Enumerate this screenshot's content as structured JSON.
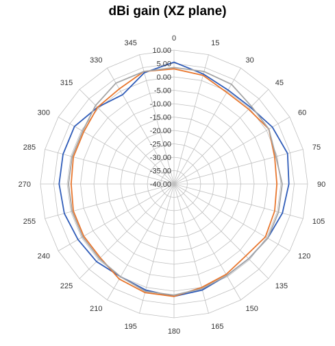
{
  "chart_data": {
    "type": "radar",
    "title": "dBi gain (XZ plane)",
    "angles": [
      "0",
      "15",
      "30",
      "45",
      "60",
      "75",
      "90",
      "105",
      "120",
      "135",
      "150",
      "165",
      "180",
      "195",
      "210",
      "225",
      "240",
      "255",
      "270",
      "285",
      "300",
      "315",
      "330",
      "345"
    ],
    "r_ticks": [
      "10.00",
      "5.00",
      "0.00",
      "-5.00",
      "-10.00",
      "-15.00",
      "-20.00",
      "-25.00",
      "-30.00",
      "-35.00",
      "-40.00"
    ],
    "rlim": [
      -40,
      10
    ],
    "grid": true,
    "legend": "none",
    "series": [
      {
        "color": "#2e5bb8",
        "values": [
          5.5,
          2.5,
          0.5,
          0.5,
          2.5,
          4.0,
          3.0,
          2.0,
          0.5,
          -0.5,
          -0.5,
          1.0,
          2.0,
          1.0,
          0.0,
          1.0,
          1.5,
          2.5,
          3.0,
          3.0,
          3.0,
          0.5,
          -1.5,
          3.0
        ]
      },
      {
        "color": "#e8762d",
        "values": [
          3.0,
          2.0,
          -0.5,
          -0.5,
          1.0,
          -1.0,
          -1.5,
          -1.0,
          -0.5,
          -2.0,
          -1.0,
          0.0,
          2.0,
          2.0,
          1.0,
          -1.0,
          -1.0,
          -1.0,
          -1.5,
          -1.0,
          -1.0,
          0.5,
          1.0,
          3.5
        ]
      },
      {
        "color": "#a5a5a5",
        "values": [
          3.5,
          3.5,
          3.0,
          1.0,
          1.0,
          -0.5,
          0.5,
          0.5,
          0.5,
          -0.5,
          -0.5,
          0.5,
          1.5,
          1.5,
          0.0,
          -0.5,
          -0.5,
          -0.5,
          -0.5,
          -0.5,
          -0.5,
          1.5,
          3.5,
          3.5
        ]
      }
    ]
  }
}
